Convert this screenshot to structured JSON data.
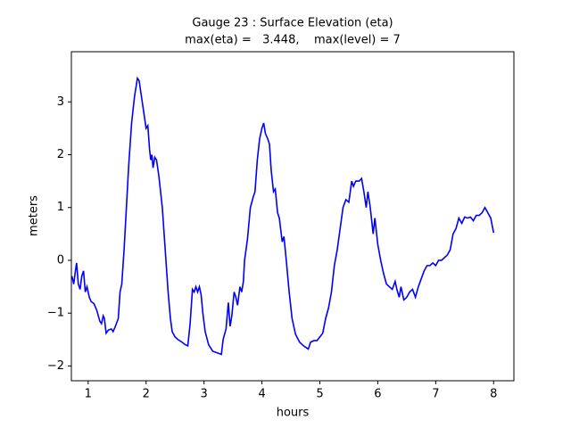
{
  "chart_data": {
    "type": "line",
    "title": [
      "Gauge 23 : Surface Elevation (eta)",
      "max(eta) =   3.448,    max(level) = 7"
    ],
    "xlabel": "hours",
    "ylabel": "meters",
    "xlim": [
      0.71,
      8.35
    ],
    "ylim": [
      -2.28,
      3.95
    ],
    "xticks": [
      1,
      2,
      3,
      4,
      5,
      6,
      7,
      8
    ],
    "yticks": [
      {
        "value": -2,
        "label": "−2"
      },
      {
        "value": -1,
        "label": "−1"
      },
      0,
      1,
      2,
      3
    ],
    "x": [
      0.72,
      0.75,
      0.78,
      0.8,
      0.83,
      0.86,
      0.89,
      0.92,
      0.95,
      0.98,
      1.02,
      1.05,
      1.1,
      1.15,
      1.2,
      1.23,
      1.26,
      1.28,
      1.31,
      1.35,
      1.4,
      1.43,
      1.47,
      1.52,
      1.55,
      1.58,
      1.62,
      1.65,
      1.7,
      1.75,
      1.8,
      1.85,
      1.88,
      1.92,
      1.96,
      2.0,
      2.03,
      2.06,
      2.08,
      2.1,
      2.12,
      2.15,
      2.18,
      2.22,
      2.28,
      2.33,
      2.38,
      2.42,
      2.45,
      2.5,
      2.55,
      2.62,
      2.68,
      2.72,
      2.76,
      2.8,
      2.83,
      2.86,
      2.89,
      2.92,
      2.95,
      2.98,
      3.02,
      3.08,
      3.15,
      3.25,
      3.3,
      3.33,
      3.38,
      3.42,
      3.45,
      3.48,
      3.52,
      3.55,
      3.58,
      3.62,
      3.65,
      3.68,
      3.7,
      3.75,
      3.8,
      3.85,
      3.88,
      3.92,
      3.96,
      4.0,
      4.03,
      4.06,
      4.1,
      4.13,
      4.16,
      4.2,
      4.23,
      4.27,
      4.3,
      4.35,
      4.38,
      4.42,
      4.47,
      4.52,
      4.58,
      4.65,
      4.72,
      4.8,
      4.84,
      4.9,
      4.95,
      5.0,
      5.05,
      5.1,
      5.15,
      5.2,
      5.25,
      5.3,
      5.35,
      5.4,
      5.45,
      5.5,
      5.55,
      5.58,
      5.62,
      5.68,
      5.72,
      5.76,
      5.8,
      5.83,
      5.87,
      5.92,
      5.95,
      6.0,
      6.05,
      6.1,
      6.15,
      6.2,
      6.25,
      6.3,
      6.33,
      6.37,
      6.4,
      6.45,
      6.5,
      6.55,
      6.6,
      6.65,
      6.7,
      6.75,
      6.8,
      6.85,
      6.9,
      6.95,
      7.0,
      7.05,
      7.1,
      7.15,
      7.2,
      7.25,
      7.3,
      7.35,
      7.4,
      7.45,
      7.5,
      7.55,
      7.6,
      7.65,
      7.7,
      7.75,
      7.8,
      7.85,
      7.9,
      7.95,
      8.0
    ],
    "series": [
      {
        "color": "#0000ff",
        "values": [
          -0.3,
          -0.45,
          -0.2,
          -0.05,
          -0.45,
          -0.55,
          -0.3,
          -0.2,
          -0.6,
          -0.5,
          -0.7,
          -0.78,
          -0.82,
          -0.95,
          -1.15,
          -1.2,
          -1.05,
          -1.1,
          -1.38,
          -1.32,
          -1.3,
          -1.35,
          -1.25,
          -1.1,
          -0.6,
          -0.45,
          0.2,
          0.8,
          1.8,
          2.6,
          3.1,
          3.448,
          3.4,
          3.1,
          2.8,
          2.5,
          2.55,
          2.1,
          1.9,
          2.0,
          1.75,
          1.95,
          1.9,
          1.6,
          1.0,
          0.2,
          -0.6,
          -1.1,
          -1.35,
          -1.45,
          -1.5,
          -1.55,
          -1.6,
          -1.62,
          -1.2,
          -0.55,
          -0.6,
          -0.5,
          -0.6,
          -0.5,
          -0.65,
          -1.0,
          -1.35,
          -1.6,
          -1.72,
          -1.76,
          -1.78,
          -1.5,
          -1.3,
          -0.8,
          -1.25,
          -1.05,
          -0.6,
          -0.7,
          -0.85,
          -0.5,
          -0.6,
          -0.4,
          0.0,
          0.4,
          1.0,
          1.2,
          1.3,
          1.9,
          2.3,
          2.5,
          2.6,
          2.4,
          2.3,
          2.2,
          1.7,
          1.3,
          1.35,
          0.9,
          0.8,
          0.35,
          0.45,
          0.0,
          -0.6,
          -1.1,
          -1.4,
          -1.55,
          -1.62,
          -1.68,
          -1.55,
          -1.52,
          -1.52,
          -1.45,
          -1.38,
          -1.1,
          -0.9,
          -0.6,
          -0.1,
          0.2,
          0.6,
          1.0,
          1.15,
          1.1,
          1.5,
          1.4,
          1.5,
          1.5,
          1.55,
          1.3,
          1.0,
          1.3,
          1.0,
          0.5,
          0.8,
          0.3,
          0.0,
          -0.25,
          -0.45,
          -0.5,
          -0.55,
          -0.4,
          -0.55,
          -0.7,
          -0.5,
          -0.75,
          -0.7,
          -0.6,
          -0.55,
          -0.7,
          -0.5,
          -0.35,
          -0.2,
          -0.1,
          -0.1,
          -0.05,
          -0.1,
          0.0,
          0.0,
          0.05,
          0.1,
          0.2,
          0.5,
          0.6,
          0.8,
          0.7,
          0.82,
          0.8,
          0.82,
          0.75,
          0.85,
          0.85,
          0.9,
          1.0,
          0.9,
          0.8,
          0.52
        ]
      }
    ]
  }
}
